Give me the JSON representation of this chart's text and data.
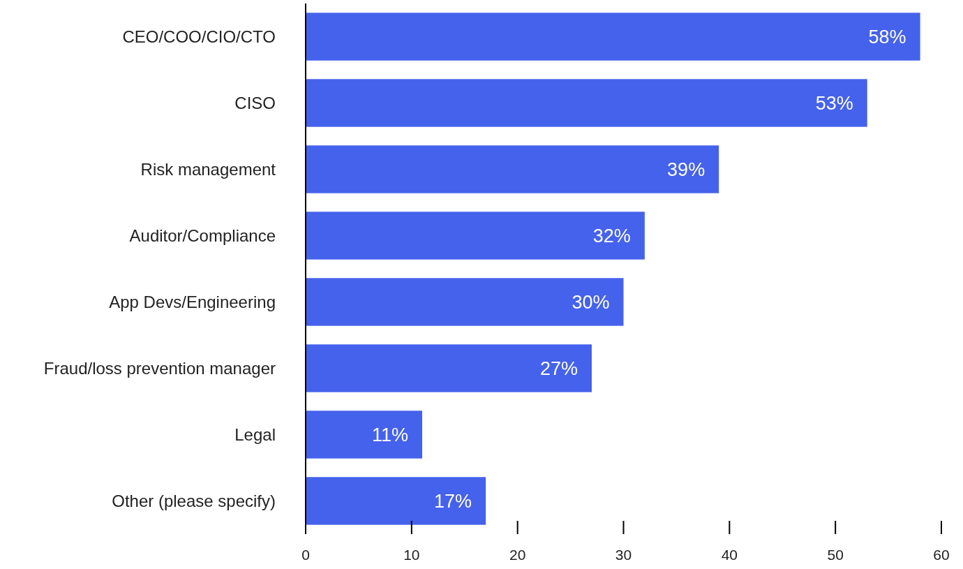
{
  "chart_data": {
    "type": "bar",
    "orientation": "horizontal",
    "categories": [
      "CEO/COO/CIO/CTO",
      "CISO",
      "Risk management",
      "Auditor/Compliance",
      "App Devs/Engineering",
      "Fraud/loss prevention manager",
      "Legal",
      "Other (please specify)"
    ],
    "values": [
      58,
      53,
      39,
      32,
      30,
      27,
      11,
      17
    ],
    "value_labels": [
      "58%",
      "53%",
      "39%",
      "32%",
      "30%",
      "27%",
      "11%",
      "17%"
    ],
    "color": "#4562ec",
    "xlim": [
      0,
      60
    ],
    "xticks": [
      0,
      10,
      20,
      30,
      40,
      50,
      60
    ]
  }
}
